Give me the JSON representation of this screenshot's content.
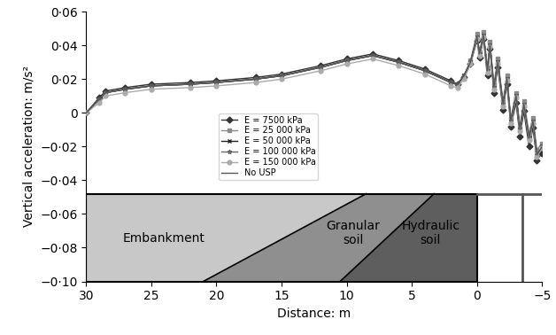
{
  "chart_data": {
    "type": "line",
    "x_label": "Distance: m",
    "y_label": "Vertical acceleration: m/s²",
    "x": [
      30,
      29,
      28.5,
      27,
      25,
      22,
      20,
      17,
      15,
      12,
      10,
      8,
      6,
      4,
      2,
      1.5,
      1,
      0.5,
      0,
      -0.2,
      -0.5,
      -0.8,
      -1,
      -1.3,
      -1.6,
      -2,
      -2.3,
      -2.6,
      -3,
      -3.3,
      -3.6,
      -4,
      -4.3,
      -4.6,
      -5
    ],
    "series": [
      {
        "name": "E = 7500 kPa",
        "color": "#333333",
        "marker": "diamond",
        "values": [
          0,
          0.009,
          0.013,
          0.015,
          0.017,
          0.018,
          0.019,
          0.021,
          0.023,
          0.028,
          0.032,
          0.035,
          0.031,
          0.026,
          0.019,
          0.017,
          0.021,
          0.029,
          0.043,
          0.033,
          0.044,
          0.022,
          0.038,
          0.012,
          0.027,
          0.002,
          0.017,
          -0.008,
          0.006,
          -0.014,
          0.001,
          -0.02,
          -0.009,
          -0.028,
          -0.024
        ]
      },
      {
        "name": "E = 25 000 kPa",
        "color": "#8a8a8a",
        "marker": "square",
        "values": [
          0,
          0.008,
          0.012,
          0.014,
          0.016,
          0.017,
          0.018,
          0.02,
          0.022,
          0.027,
          0.031,
          0.034,
          0.03,
          0.025,
          0.018,
          0.017,
          0.022,
          0.031,
          0.047,
          0.036,
          0.048,
          0.027,
          0.042,
          0.017,
          0.032,
          0.007,
          0.022,
          -0.003,
          0.012,
          -0.008,
          0.007,
          -0.012,
          -0.003,
          -0.022,
          -0.018
        ]
      },
      {
        "name": "E = 50 000 kPa",
        "color": "#222222",
        "marker": "x",
        "values": [
          0,
          0.008,
          0.012,
          0.014,
          0.016,
          0.017,
          0.018,
          0.02,
          0.022,
          0.027,
          0.031,
          0.034,
          0.03,
          0.025,
          0.018,
          0.017,
          0.022,
          0.03,
          0.045,
          0.035,
          0.046,
          0.025,
          0.04,
          0.015,
          0.03,
          0.005,
          0.02,
          -0.005,
          0.01,
          -0.01,
          0.005,
          -0.015,
          -0.005,
          -0.025,
          -0.02
        ]
      },
      {
        "name": "E = 100 000 kPa",
        "color": "#666666",
        "marker": "asterisk",
        "values": [
          0,
          0.008,
          0.012,
          0.014,
          0.016,
          0.017,
          0.018,
          0.02,
          0.022,
          0.027,
          0.031,
          0.034,
          0.03,
          0.025,
          0.018,
          0.017,
          0.022,
          0.03,
          0.045,
          0.035,
          0.046,
          0.025,
          0.04,
          0.015,
          0.03,
          0.005,
          0.02,
          -0.005,
          0.01,
          -0.01,
          0.005,
          -0.015,
          -0.005,
          -0.025,
          -0.02
        ]
      },
      {
        "name": "E = 150 000 kPa",
        "color": "#aaaaaa",
        "marker": "circle",
        "values": [
          0,
          0.006,
          0.01,
          0.012,
          0.014,
          0.015,
          0.016,
          0.018,
          0.02,
          0.025,
          0.029,
          0.032,
          0.028,
          0.023,
          0.016,
          0.015,
          0.02,
          0.029,
          0.044,
          0.034,
          0.045,
          0.024,
          0.039,
          0.014,
          0.029,
          0.004,
          0.019,
          -0.006,
          0.009,
          -0.011,
          0.004,
          -0.016,
          -0.006,
          -0.026,
          -0.021
        ]
      },
      {
        "name": "No USP",
        "color": "#555555",
        "marker": "none",
        "values": [
          0,
          0.008,
          0.012,
          0.014,
          0.016,
          0.017,
          0.018,
          0.02,
          0.022,
          0.027,
          0.031,
          0.034,
          0.03,
          0.025,
          0.018,
          0.017,
          0.022,
          0.03,
          0.045,
          0.035,
          0.046,
          0.025,
          0.04,
          0.015,
          0.03,
          0.005,
          0.02,
          -0.005,
          0.01,
          -0.01,
          0.005,
          -0.015,
          -0.005,
          -0.025,
          -0.02
        ]
      }
    ],
    "xlim": [
      30,
      -5
    ],
    "xticks": [
      30,
      25,
      20,
      15,
      10,
      5,
      0,
      {
        "value": -5,
        "label": "−5"
      }
    ],
    "ylim": [
      -0.1,
      0.06
    ],
    "yticks": [
      {
        "value": -0.1,
        "label": "−0·10"
      },
      {
        "value": -0.08,
        "label": "−0·08"
      },
      {
        "value": -0.06,
        "label": "−0·06"
      },
      {
        "value": -0.04,
        "label": "−0·04"
      },
      {
        "value": -0.02,
        "label": "−0·02"
      },
      0,
      {
        "value": 0.02,
        "label": "0·02"
      },
      {
        "value": 0.04,
        "label": "0·04"
      },
      {
        "value": 0.06,
        "label": "0·06"
      }
    ],
    "legend": "center",
    "grid": false,
    "annotations": [
      "Embankment",
      "Granular soil",
      "Hydraulic soil"
    ]
  }
}
